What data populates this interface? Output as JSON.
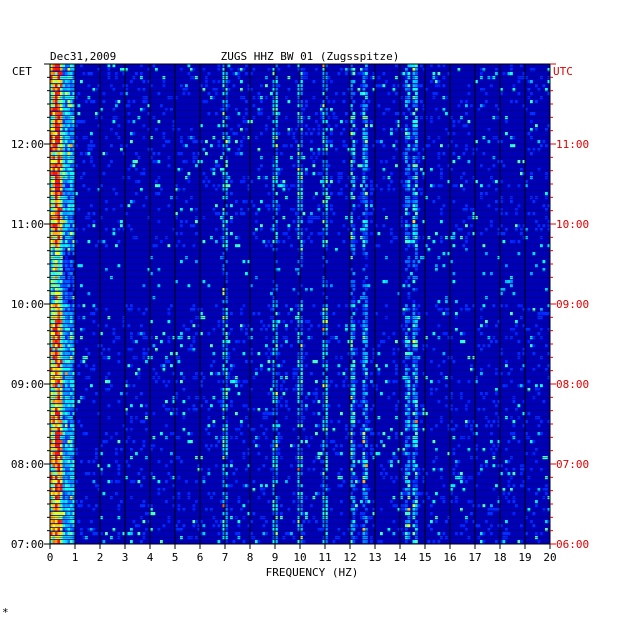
{
  "header": {
    "date": "Dec31,2009",
    "station": "ZUGS HHZ BW 01 (Zugsspitze)",
    "left_tz": "CET",
    "right_tz": "UTC"
  },
  "chart_data": {
    "type": "heatmap",
    "title": "ZUGS HHZ BW 01 (Zugsspitze)",
    "xlabel": "FREQUENCY (HZ)",
    "xlim": [
      0,
      20
    ],
    "x_ticks": [
      "0",
      "1",
      "2",
      "3",
      "4",
      "5",
      "6",
      "7",
      "8",
      "9",
      "10",
      "11",
      "12",
      "13",
      "14",
      "15",
      "16",
      "17",
      "18",
      "19",
      "20"
    ],
    "y_left_label": "CET",
    "y_right_label": "UTC",
    "y_left_ticks": [
      "07:00",
      "08:00",
      "09:00",
      "10:00",
      "11:00",
      "12:00"
    ],
    "y_right_ticks": [
      "06:00",
      "07:00",
      "08:00",
      "09:00",
      "10:00",
      "11:00"
    ],
    "time_range_cet": [
      "07:00",
      "13:00"
    ],
    "colorscale": [
      "#00008b",
      "#0000ff",
      "#00ffff",
      "#ffff00",
      "#ff0000"
    ],
    "tick_color_left": "#000000",
    "tick_color_right": "#e00000"
  },
  "footer": {
    "mark": "*"
  }
}
